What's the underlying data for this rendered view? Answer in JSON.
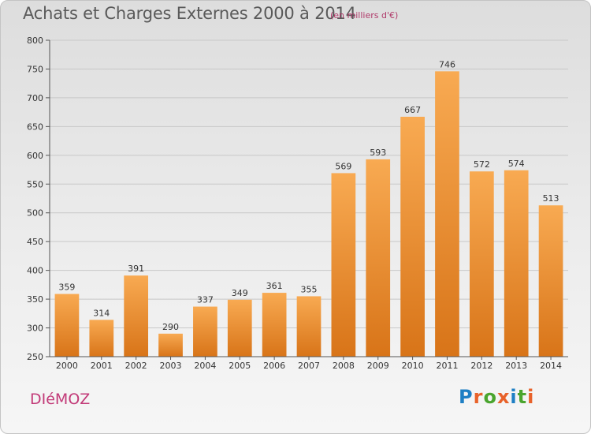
{
  "header": {
    "title": "Achats et Charges Externes 2000 à 2014",
    "subtitle": "(en milliers d'€)"
  },
  "footer": {
    "town": "DIéMOZ",
    "logo": [
      "P",
      "r",
      "o",
      "x",
      "i",
      "t",
      "i"
    ],
    "logo_colors": [
      "#1e7fc4",
      "#e8622a",
      "#4aa52e",
      "#e8622a",
      "#1e7fc4",
      "#4aa52e",
      "#e8622a"
    ]
  },
  "chart_data": {
    "type": "bar",
    "title": "Achats et Charges Externes 2000 à 2014",
    "subtitle": "(en milliers d'€)",
    "categories": [
      "2000",
      "2001",
      "2002",
      "2003",
      "2004",
      "2005",
      "2006",
      "2007",
      "2008",
      "2009",
      "2010",
      "2011",
      "2012",
      "2013",
      "2014"
    ],
    "values": [
      359,
      314,
      391,
      290,
      337,
      349,
      361,
      355,
      569,
      593,
      667,
      746,
      572,
      574,
      513
    ],
    "ylim": [
      250,
      800
    ],
    "yticks": [
      250,
      300,
      350,
      400,
      450,
      500,
      550,
      600,
      650,
      700,
      750,
      800
    ],
    "grid": true,
    "bar_color": "#f0902c"
  }
}
